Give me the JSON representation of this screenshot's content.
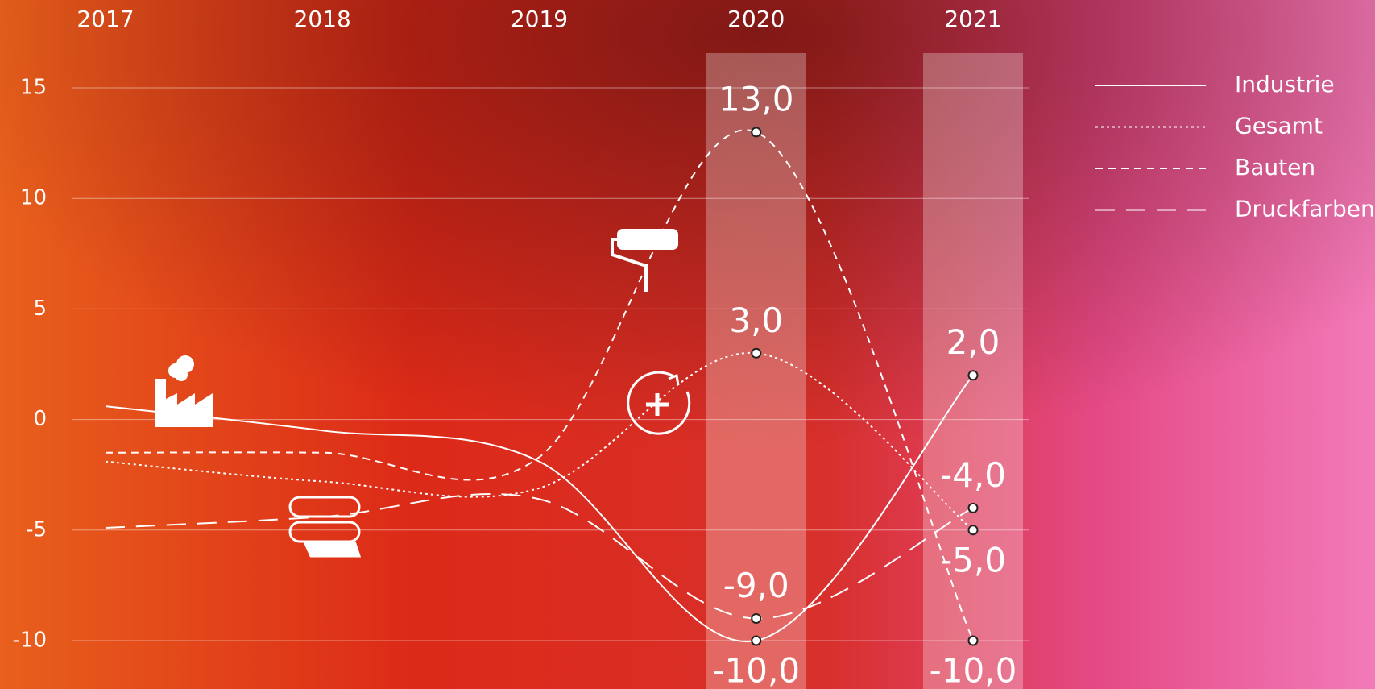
{
  "chart_data": {
    "type": "line",
    "categories": [
      "2017",
      "2018",
      "2019",
      "2020",
      "2021"
    ],
    "ylim": [
      -12,
      16
    ],
    "yticks": [
      -10,
      -5,
      0,
      5,
      10,
      15
    ],
    "grid": true,
    "highlight_categories": [
      "2020",
      "2021"
    ],
    "series": [
      {
        "name": "Industrie",
        "color": "#ffffff",
        "dash": "solid",
        "values": [
          0.6,
          -0.5,
          -1.9,
          -10,
          2
        ],
        "value_labels": [
          null,
          null,
          null,
          "-10,0",
          "2,0"
        ]
      },
      {
        "name": "Gesamt",
        "color": "#ffffff",
        "dash": "dotted",
        "values": [
          -1.9,
          -2.8,
          -3.1,
          3,
          -5
        ],
        "value_labels": [
          null,
          null,
          null,
          "3,0",
          "-5,0"
        ]
      },
      {
        "name": "Bauten",
        "color": "#ffffff",
        "dash": "dashed",
        "values": [
          -1.5,
          -1.5,
          -1.7,
          13,
          -10
        ],
        "value_labels": [
          null,
          null,
          null,
          "13,0",
          "-10,0"
        ]
      },
      {
        "name": "Druckfarben",
        "color": "#ffffff",
        "dash": "longdash",
        "values": [
          -4.9,
          -4.4,
          -3.6,
          -9,
          -4
        ],
        "value_labels": [
          null,
          null,
          null,
          "-9,0",
          "-4,0"
        ]
      }
    ]
  }
}
